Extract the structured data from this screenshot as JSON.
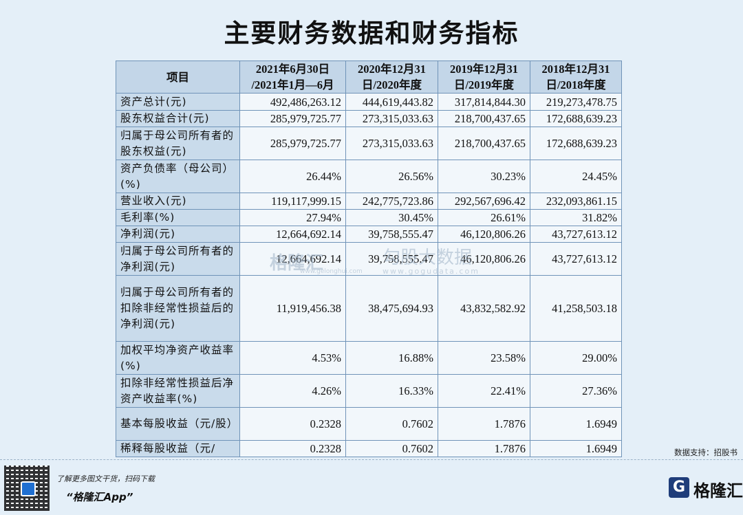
{
  "header": {
    "title": "主要财务数据和财务指标"
  },
  "table": {
    "columns": [
      "项目",
      "2021年6月30日\n/2021年1月—6月",
      "2020年12月31\n日/2020年度",
      "2019年12月31\n日/2019年度",
      "2018年12月31\n日/2018年度"
    ],
    "rows": [
      [
        "资产总计(元)",
        "492,486,263.12",
        "444,619,443.82",
        "317,814,844.30",
        "219,273,478.75"
      ],
      [
        "股东权益合计(元)",
        "285,979,725.77",
        "273,315,033.63",
        "218,700,437.65",
        "172,688,639.23"
      ],
      [
        "归属于母公司所有者的股东权益(元)",
        "285,979,725.77",
        "273,315,033.63",
        "218,700,437.65",
        "172,688,639.23"
      ],
      [
        "资产负债率（母公司）(%)",
        "26.44%",
        "26.56%",
        "30.23%",
        "24.45%"
      ],
      [
        "营业收入(元)",
        "119,117,999.15",
        "242,775,723.86",
        "292,567,696.42",
        "232,093,861.15"
      ],
      [
        "毛利率(%)",
        "27.94%",
        "30.45%",
        "26.61%",
        "31.82%"
      ],
      [
        "净利润(元)",
        "12,664,692.14",
        "39,758,555.47",
        "46,120,806.26",
        "43,727,613.12"
      ],
      [
        "归属于母公司所有者的净利润(元)",
        "12,664,692.14",
        "39,758,555.47",
        "46,120,806.26",
        "43,727,613.12"
      ],
      [
        "归属于母公司所有者的扣除非经常性损益后的净利润(元)",
        "11,919,456.38",
        "38,475,694.93",
        "43,832,582.92",
        "41,258,503.18"
      ],
      [
        "加权平均净资产收益率(%)",
        "4.53%",
        "16.88%",
        "23.58%",
        "29.00%"
      ],
      [
        "扣除非经常性损益后净资产收益率(%)",
        "4.26%",
        "16.33%",
        "22.41%",
        "27.36%"
      ],
      [
        "基本每股收益（元/股）",
        "0.2328",
        "0.7602",
        "1.7876",
        "1.6949"
      ],
      [
        "稀释每股收益（元/",
        "0.2328",
        "0.7602",
        "1.7876",
        "1.6949"
      ]
    ]
  },
  "watermark": {
    "brand": "格隆汇",
    "brand_url": "www.gelonghui.com",
    "data_brand": "勾股大数据",
    "data_url": "www.gogudata.com"
  },
  "footer": {
    "source": "数据支持：招股书",
    "promo": "了解更多图文干货，扫码下载",
    "app": "“格隆汇App”",
    "logo": "格隆汇"
  }
}
